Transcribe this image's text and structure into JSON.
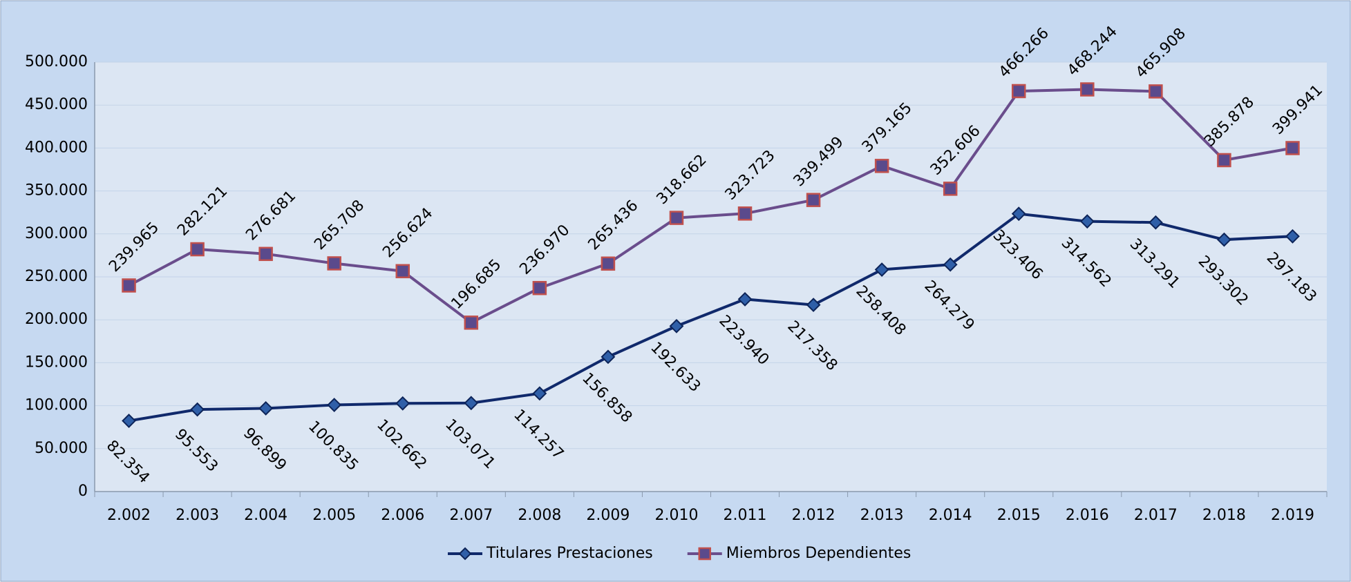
{
  "chart_data": {
    "type": "line",
    "categories": [
      "2.002",
      "2.003",
      "2.004",
      "2.005",
      "2.006",
      "2.007",
      "2.008",
      "2.009",
      "2.010",
      "2.011",
      "2.012",
      "2.013",
      "2.014",
      "2.015",
      "2.016",
      "2.017",
      "2.018",
      "2.019"
    ],
    "series": [
      {
        "name": "Titulares Prestaciones",
        "color": "#10296b",
        "marker": "diamond",
        "values": [
          82354,
          95553,
          96899,
          100835,
          102662,
          103071,
          114257,
          156858,
          192633,
          223940,
          217358,
          258408,
          264279,
          323406,
          314562,
          313291,
          293302,
          297183
        ],
        "value_labels": [
          "82.354",
          "95.553",
          "96.899",
          "100.835",
          "102.662",
          "103.071",
          "114.257",
          "156.858",
          "192.633",
          "223.940",
          "217.358",
          "258.408",
          "264.279",
          "323.406",
          "314.562",
          "313.291",
          "293.302",
          "297.183"
        ]
      },
      {
        "name": "Miembros Dependientes",
        "color": "#6a4d8c",
        "marker": "square",
        "values": [
          239965,
          282121,
          276681,
          265708,
          256624,
          196685,
          236970,
          265436,
          318662,
          323723,
          339499,
          379165,
          352606,
          466266,
          468244,
          465908,
          385878,
          399941
        ],
        "value_labels": [
          "239.965",
          "282.121",
          "276.681",
          "265.708",
          "256.624",
          "196.685",
          "236.970",
          "265.436",
          "318.662",
          "323.723",
          "339.499",
          "379.165",
          "352.606",
          "466.266",
          "468.244",
          "465.908",
          "385.878",
          "399.941"
        ]
      }
    ],
    "ylim": [
      0,
      500000
    ],
    "yticks": [
      0,
      {
        "value": 50000,
        "label": "50.000"
      },
      {
        "value": 100000,
        "label": "100.000"
      },
      {
        "value": 150000,
        "label": "150.000"
      },
      {
        "value": 200000,
        "label": "200.000"
      },
      {
        "value": 250000,
        "label": "250.000"
      },
      {
        "value": 300000,
        "label": "300.000"
      },
      {
        "value": 350000,
        "label": "350.000"
      },
      {
        "value": 400000,
        "label": "400.000"
      },
      {
        "value": 450000,
        "label": "450.000"
      },
      {
        "value": 500000,
        "label": "500.000"
      }
    ],
    "grid": true,
    "legend": "bottom"
  }
}
